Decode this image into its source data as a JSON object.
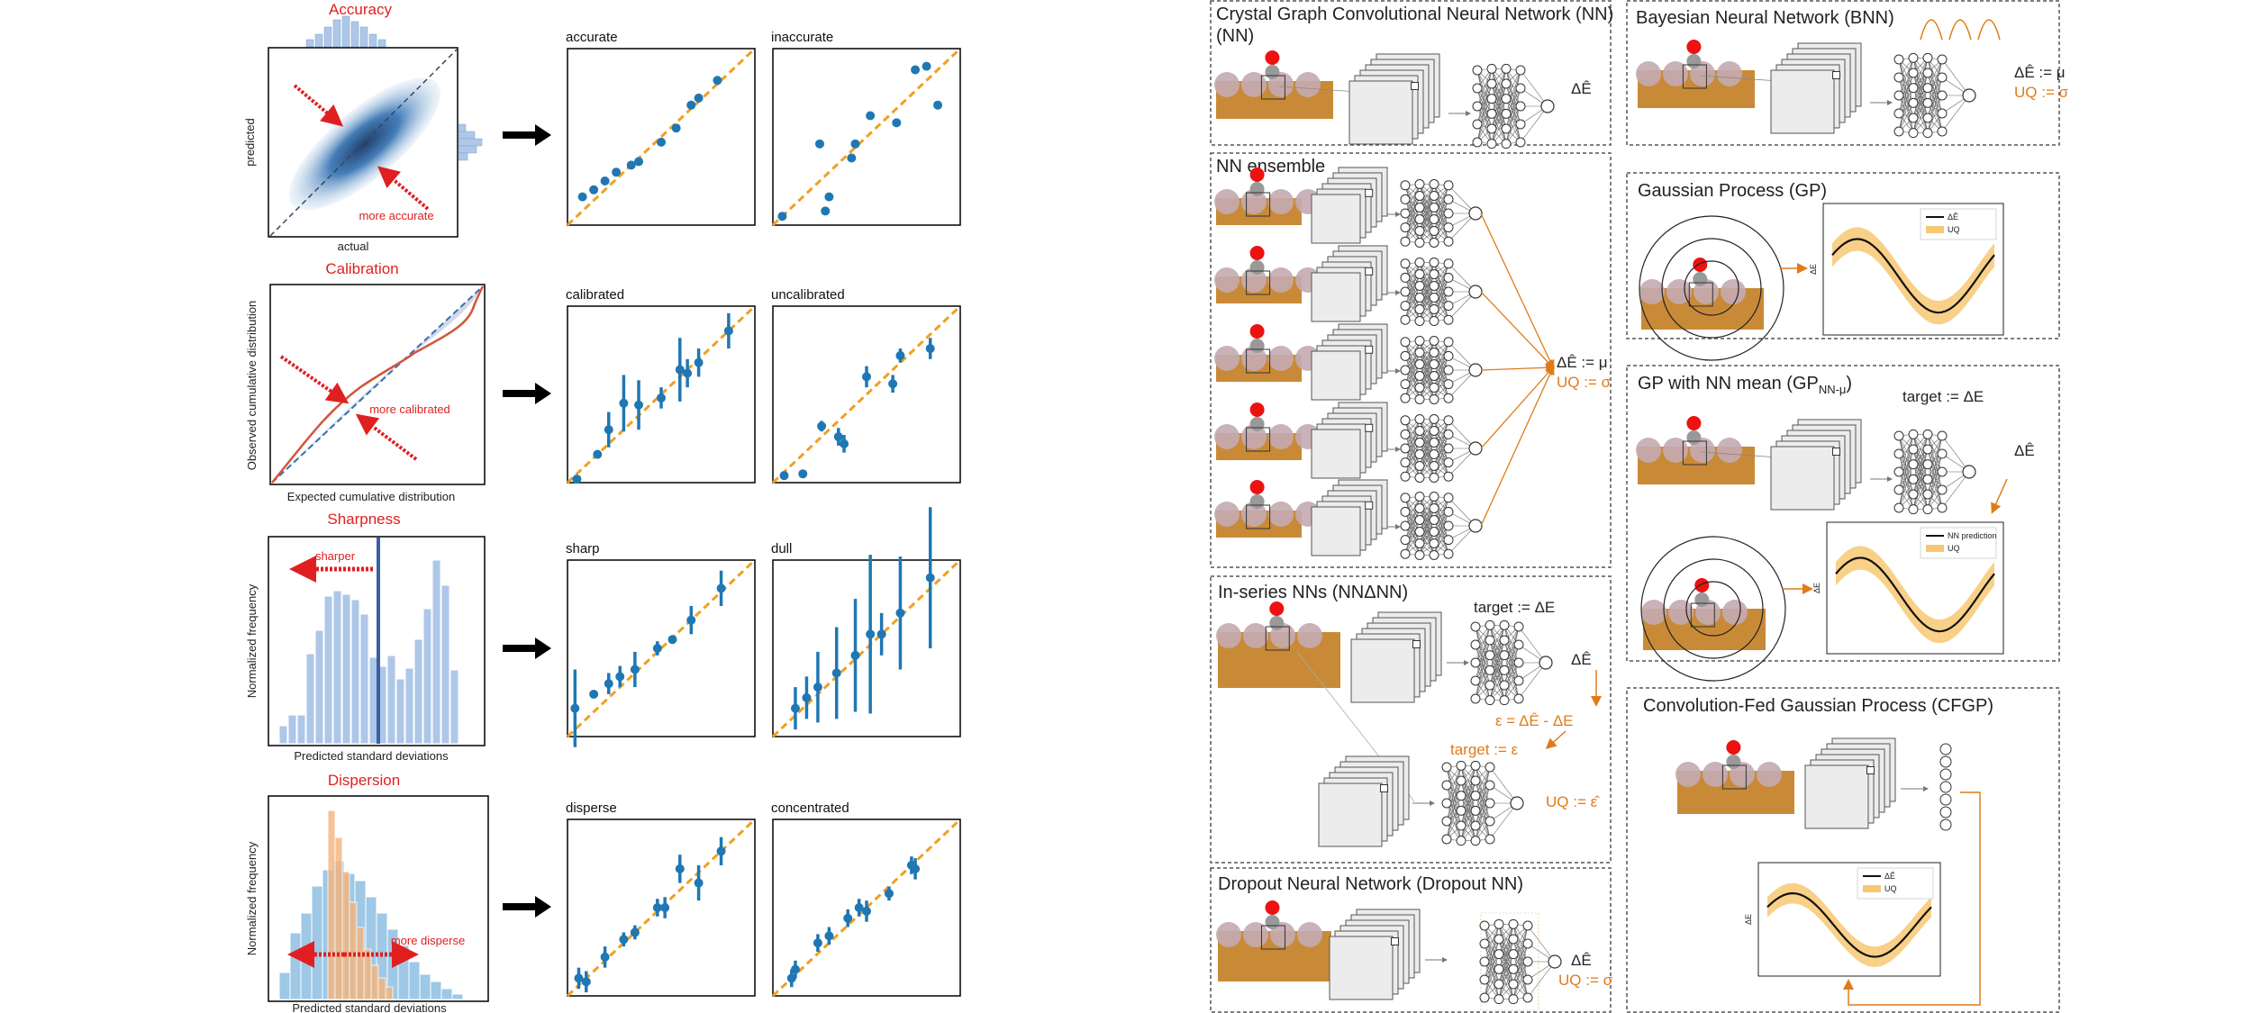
{
  "left": {
    "metrics": [
      {
        "title": "Accuracy",
        "xlabel": "actual",
        "ylabel": "predicted",
        "annotation": "more accurate",
        "subplots": [
          "accurate",
          "inaccurate"
        ]
      },
      {
        "title": "Calibration",
        "xlabel": "Expected cumulative distribution",
        "ylabel": "Observed cumulative distribution",
        "annotation": "more calibrated",
        "subplots": [
          "calibrated",
          "uncalibrated"
        ]
      },
      {
        "title": "Sharpness",
        "xlabel": "Predicted standard deviations",
        "ylabel": "Normalized frequency",
        "annotation": "sharper",
        "subplots": [
          "sharp",
          "dull"
        ]
      },
      {
        "title": "Dispersion",
        "xlabel": "Predicted standard deviations",
        "ylabel": "Normalized frequency",
        "annotation": "more disperse",
        "subplots": [
          "disperse",
          "concentrated"
        ]
      }
    ],
    "colors": {
      "title": "#e02020",
      "points": "#1f77b4",
      "parity": "#f0a020",
      "hist": "#aec7e8",
      "hist2": "#f6b37a"
    }
  },
  "right": {
    "boxes": {
      "nn": {
        "title": "Crystal Graph Convolutional Neural Network (NN)",
        "out": "ΔÊ"
      },
      "ens": {
        "title": "NN ensemble",
        "mu": "ΔÊ := μ",
        "uq": "UQ := σ"
      },
      "ser": {
        "title": "In-series NNs (NNΔNN)",
        "target1": "target := ΔE",
        "out": "ΔÊ",
        "eps": "ε = ΔÊ - ΔE",
        "target2": "target := ε",
        "uq": "UQ := ε̂"
      },
      "drop": {
        "title": "Dropout Neural Network (Dropout NN)",
        "out": "ΔÊ",
        "uq": "UQ := σ"
      },
      "bnn": {
        "title": "Bayesian Neural Network (BNN)",
        "mu": "ΔÊ := μ",
        "uq": "UQ := σ"
      },
      "gp": {
        "title": "Gaussian Process (GP)",
        "axis": "ΔE",
        "leg1": "ΔÊ",
        "leg2": "UQ"
      },
      "gpnn": {
        "title": "GP with NN mean (GP",
        "sub": "NN-μ",
        "close": ")",
        "target": "target := ΔE",
        "out": "ΔÊ",
        "axis": "ΔE",
        "leg1": "NN prediction",
        "leg2": "UQ"
      },
      "cfgp": {
        "title": "Convolution-Fed Gaussian Process (CFGP)",
        "axis": "ΔE",
        "leg1": "ΔÊ",
        "leg2": "UQ"
      }
    },
    "colors": {
      "orange": "#e07b18",
      "slab": "#c98a37",
      "atom": "#c4aab1",
      "ads": "#ee1111",
      "band": "#f7c873"
    }
  }
}
